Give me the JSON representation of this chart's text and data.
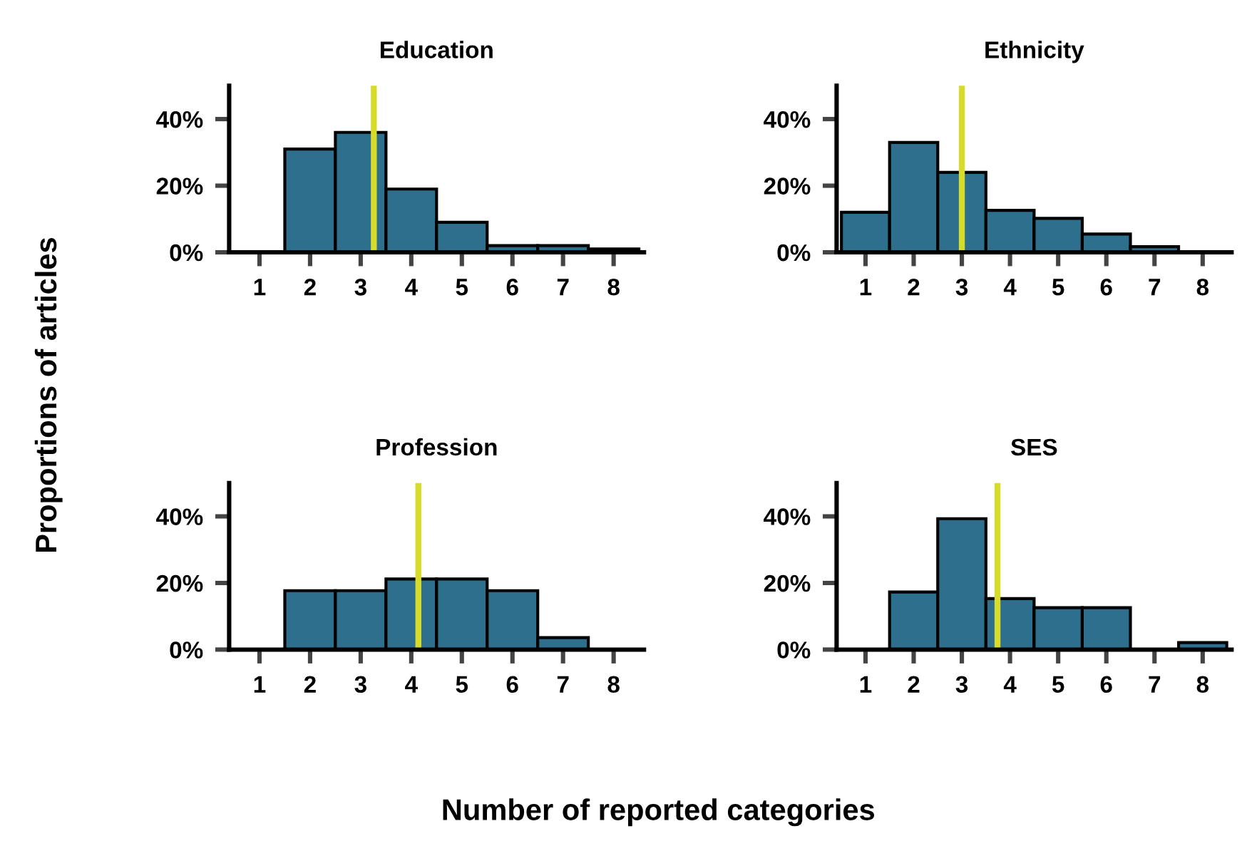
{
  "chart_data": [
    {
      "type": "histogram",
      "title": "Education",
      "xlabel": "Number of reported categories",
      "ylabel": "Proportions of articles",
      "bins": [
        0.5,
        1.5,
        2.5,
        3.5,
        4.5,
        5.5,
        6.5,
        7.5,
        8.5
      ],
      "values": [
        0,
        31,
        36,
        19,
        9,
        2,
        2,
        1
      ],
      "color": "#2e6f8e",
      "xlim": [
        0.4,
        8.6
      ],
      "ylim": [
        0,
        50
      ],
      "xticks": [
        1,
        2,
        3,
        4,
        5,
        6,
        7,
        8
      ],
      "yticks": [
        {
          "value": 0,
          "label": "0%"
        },
        {
          "value": 20,
          "label": "20%"
        },
        {
          "value": 40,
          "label": "40%"
        }
      ],
      "grid": false,
      "legend": false,
      "ref_lines": [
        {
          "axis": "x",
          "value": 3.26,
          "color": "#d7dc2a"
        }
      ]
    },
    {
      "type": "histogram",
      "title": "Ethnicity",
      "bins": [
        0.5,
        1.5,
        2.5,
        3.5,
        4.5,
        5.5,
        6.5,
        7.5,
        8.5
      ],
      "values": [
        12,
        33,
        24,
        12.6,
        10.2,
        5.5,
        1.7,
        0
      ],
      "color": "#2e6f8e",
      "xlim": [
        0.4,
        8.6
      ],
      "ylim": [
        0,
        50
      ],
      "xticks": [
        1,
        2,
        3,
        4,
        5,
        6,
        7,
        8
      ],
      "yticks": [
        {
          "value": 0,
          "label": "0%"
        },
        {
          "value": 20,
          "label": "20%"
        },
        {
          "value": 40,
          "label": "40%"
        }
      ],
      "grid": false,
      "legend": false,
      "ref_lines": [
        {
          "axis": "x",
          "value": 3.0,
          "color": "#d7dc2a"
        }
      ]
    },
    {
      "type": "histogram",
      "title": "Profession",
      "bins": [
        0.5,
        1.5,
        2.5,
        3.5,
        4.5,
        5.5,
        6.5,
        7.5,
        8.5
      ],
      "values": [
        0,
        17.7,
        17.7,
        21.2,
        21.2,
        17.7,
        3.6,
        0
      ],
      "color": "#2e6f8e",
      "xlim": [
        0.4,
        8.6
      ],
      "ylim": [
        0,
        50
      ],
      "xticks": [
        1,
        2,
        3,
        4,
        5,
        6,
        7,
        8
      ],
      "yticks": [
        {
          "value": 0,
          "label": "0%"
        },
        {
          "value": 20,
          "label": "20%"
        },
        {
          "value": 40,
          "label": "40%"
        }
      ],
      "grid": false,
      "legend": false,
      "ref_lines": [
        {
          "axis": "x",
          "value": 4.14,
          "color": "#d7dc2a"
        }
      ]
    },
    {
      "type": "histogram",
      "title": "SES",
      "bins": [
        0.5,
        1.5,
        2.5,
        3.5,
        4.5,
        5.5,
        6.5,
        7.5,
        8.5
      ],
      "values": [
        0,
        17.3,
        39.3,
        15.3,
        12.6,
        12.6,
        0,
        2.1
      ],
      "color": "#2e6f8e",
      "xlim": [
        0.4,
        8.6
      ],
      "ylim": [
        0,
        50
      ],
      "xticks": [
        1,
        2,
        3,
        4,
        5,
        6,
        7,
        8
      ],
      "yticks": [
        {
          "value": 0,
          "label": "0%"
        },
        {
          "value": 20,
          "label": "20%"
        },
        {
          "value": 40,
          "label": "40%"
        }
      ],
      "grid": false,
      "legend": false,
      "ref_lines": [
        {
          "axis": "x",
          "value": 3.74,
          "color": "#d7dc2a"
        }
      ]
    }
  ]
}
